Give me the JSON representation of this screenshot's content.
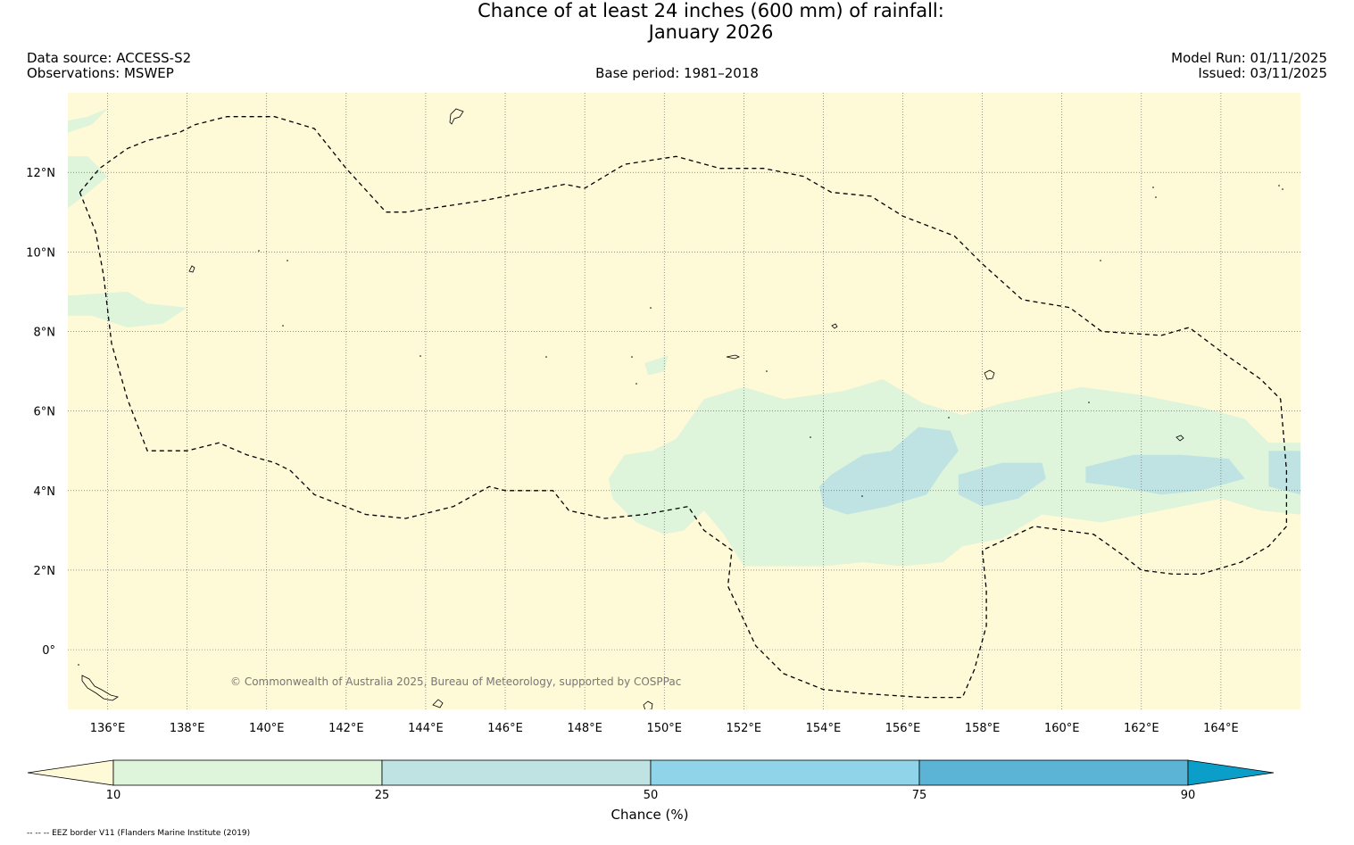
{
  "title": {
    "line1": "Chance of at least 24 inches (600  mm) of rainfall:",
    "line2": "January 2026"
  },
  "meta": {
    "data_source": "Data source: ACCESS-S2",
    "observations": "Observations: MSWEP",
    "base_period": "Base period: 1981–2018",
    "model_run": "Model Run: 01/11/2025",
    "issued": "Issued: 03/11/2025"
  },
  "map": {
    "lon_range": [
      135,
      166
    ],
    "lat_range": [
      -1.5,
      14
    ],
    "lon_ticks": [
      136,
      138,
      140,
      142,
      144,
      146,
      148,
      150,
      152,
      154,
      156,
      158,
      160,
      162,
      164
    ],
    "lon_labels": [
      "136°E",
      "138°E",
      "140°E",
      "142°E",
      "144°E",
      "146°E",
      "148°E",
      "150°E",
      "152°E",
      "154°E",
      "156°E",
      "158°E",
      "160°E",
      "162°E",
      "164°E"
    ],
    "lat_ticks": [
      12,
      10,
      8,
      6,
      4,
      2,
      0
    ],
    "lat_labels": [
      "12°N",
      "10°N",
      "8°N",
      "6°N",
      "4°N",
      "2°N",
      "0°"
    ],
    "background_color": "#fef9d6",
    "copyright": "© Commonwealth of Australia 2025, Bureau of Meteorology, supported by COSPPac",
    "eez_border_lonlat": [
      [
        135.3,
        11.5
      ],
      [
        135.8,
        12.1
      ],
      [
        136.5,
        12.6
      ],
      [
        137.0,
        12.8
      ],
      [
        137.8,
        13.0
      ],
      [
        138.2,
        13.2
      ],
      [
        139.0,
        13.4
      ],
      [
        140.2,
        13.4
      ],
      [
        141.2,
        13.1
      ],
      [
        142.0,
        12.1
      ],
      [
        143.0,
        11.0
      ],
      [
        143.5,
        11.0
      ],
      [
        145.5,
        11.3
      ],
      [
        147.5,
        11.7
      ],
      [
        148.0,
        11.6
      ],
      [
        149.0,
        12.2
      ],
      [
        150.3,
        12.4
      ],
      [
        151.4,
        12.1
      ],
      [
        152.5,
        12.1
      ],
      [
        153.5,
        11.9
      ],
      [
        154.2,
        11.5
      ],
      [
        155.2,
        11.4
      ],
      [
        156.0,
        10.9
      ],
      [
        157.3,
        10.4
      ],
      [
        158.0,
        9.7
      ],
      [
        159.0,
        8.8
      ],
      [
        160.2,
        8.6
      ],
      [
        161.0,
        8.0
      ],
      [
        162.5,
        7.9
      ],
      [
        163.2,
        8.1
      ],
      [
        164.0,
        7.5
      ],
      [
        165.0,
        6.8
      ],
      [
        165.5,
        6.3
      ],
      [
        165.65,
        4.5
      ],
      [
        165.65,
        3.1
      ],
      [
        165.2,
        2.6
      ],
      [
        164.5,
        2.2
      ],
      [
        163.5,
        1.9
      ],
      [
        162.8,
        1.9
      ],
      [
        162.0,
        2.0
      ],
      [
        161.5,
        2.4
      ],
      [
        160.8,
        2.9
      ],
      [
        159.3,
        3.1
      ],
      [
        158.0,
        2.5
      ],
      [
        158.1,
        1.5
      ],
      [
        158.1,
        0.6
      ],
      [
        157.8,
        -0.5
      ],
      [
        157.5,
        -1.2
      ],
      [
        156.5,
        -1.2
      ],
      [
        155.0,
        -1.1
      ],
      [
        154.0,
        -1.0
      ],
      [
        153.0,
        -0.6
      ],
      [
        152.3,
        0.1
      ],
      [
        151.6,
        1.6
      ],
      [
        151.7,
        2.5
      ],
      [
        151.0,
        3.0
      ],
      [
        150.6,
        3.6
      ],
      [
        149.5,
        3.4
      ],
      [
        148.5,
        3.3
      ],
      [
        147.6,
        3.5
      ],
      [
        147.2,
        4.0
      ],
      [
        146.0,
        4.0
      ],
      [
        145.6,
        4.1
      ],
      [
        144.7,
        3.6
      ],
      [
        143.5,
        3.3
      ],
      [
        142.5,
        3.4
      ],
      [
        141.2,
        3.9
      ],
      [
        140.6,
        4.5
      ],
      [
        140.2,
        4.7
      ],
      [
        139.5,
        4.9
      ],
      [
        138.8,
        5.2
      ],
      [
        138.0,
        5.0
      ],
      [
        137.0,
        5.0
      ],
      [
        136.5,
        6.3
      ],
      [
        136.1,
        7.7
      ],
      [
        135.9,
        9.4
      ],
      [
        135.7,
        10.5
      ],
      [
        135.3,
        11.5
      ]
    ],
    "zone_10_25_lonlat": [
      [
        [
          150.3,
          5.3
        ],
        [
          151.0,
          6.3
        ],
        [
          152.0,
          6.6
        ],
        [
          153.0,
          6.3
        ],
        [
          154.5,
          6.5
        ],
        [
          155.5,
          6.8
        ],
        [
          156.5,
          6.2
        ],
        [
          157.5,
          5.9
        ],
        [
          158.5,
          6.2
        ],
        [
          159.5,
          6.4
        ],
        [
          160.5,
          6.6
        ],
        [
          162.0,
          6.4
        ],
        [
          163.5,
          6.1
        ],
        [
          164.6,
          5.8
        ],
        [
          165.2,
          5.2
        ],
        [
          166.0,
          5.2
        ],
        [
          166.0,
          3.4
        ],
        [
          165.0,
          3.5
        ],
        [
          164.0,
          3.8
        ],
        [
          162.5,
          3.5
        ],
        [
          161.0,
          3.2
        ],
        [
          159.5,
          3.4
        ],
        [
          158.5,
          2.8
        ],
        [
          157.5,
          2.6
        ],
        [
          157.0,
          2.2
        ],
        [
          156.0,
          2.1
        ],
        [
          155.0,
          2.2
        ],
        [
          154.0,
          2.1
        ],
        [
          153.0,
          2.1
        ],
        [
          152.0,
          2.1
        ],
        [
          151.5,
          2.9
        ],
        [
          151.0,
          3.5
        ],
        [
          150.5,
          3.0
        ],
        [
          150.0,
          2.9
        ],
        [
          149.3,
          3.2
        ],
        [
          148.7,
          3.8
        ],
        [
          148.6,
          4.3
        ],
        [
          149.0,
          4.9
        ],
        [
          149.7,
          5.0
        ]
      ],
      [
        [
          135.0,
          8.9
        ],
        [
          136.5,
          9.0
        ],
        [
          137.0,
          8.7
        ],
        [
          138.0,
          8.6
        ],
        [
          137.4,
          8.2
        ],
        [
          136.5,
          8.1
        ],
        [
          135.6,
          8.4
        ],
        [
          135.0,
          8.4
        ]
      ],
      [
        [
          135.0,
          12.4
        ],
        [
          135.5,
          12.4
        ],
        [
          136.0,
          11.9
        ],
        [
          135.4,
          11.4
        ],
        [
          135.0,
          11.1
        ]
      ],
      [
        [
          135.0,
          13.3
        ],
        [
          135.5,
          13.4
        ],
        [
          136.0,
          13.6
        ],
        [
          135.6,
          13.2
        ],
        [
          135.0,
          13.0
        ]
      ],
      [
        [
          149.5,
          7.2
        ],
        [
          150.1,
          7.4
        ],
        [
          150.0,
          7.0
        ],
        [
          149.6,
          6.9
        ]
      ]
    ],
    "zone_25_50_lonlat": [
      [
        [
          154.2,
          4.4
        ],
        [
          155.0,
          4.9
        ],
        [
          155.7,
          5.0
        ],
        [
          156.4,
          5.6
        ],
        [
          157.2,
          5.5
        ],
        [
          157.4,
          5.0
        ],
        [
          157.0,
          4.5
        ],
        [
          156.6,
          3.9
        ],
        [
          155.6,
          3.6
        ],
        [
          154.6,
          3.4
        ],
        [
          154.0,
          3.6
        ],
        [
          153.9,
          4.1
        ]
      ],
      [
        [
          157.4,
          4.4
        ],
        [
          158.5,
          4.7
        ],
        [
          159.5,
          4.7
        ],
        [
          159.6,
          4.3
        ],
        [
          158.9,
          3.8
        ],
        [
          158.0,
          3.6
        ],
        [
          157.4,
          3.9
        ]
      ],
      [
        [
          160.6,
          4.6
        ],
        [
          161.8,
          4.9
        ],
        [
          163.0,
          4.9
        ],
        [
          164.2,
          4.8
        ],
        [
          164.6,
          4.3
        ],
        [
          163.5,
          4.0
        ],
        [
          162.5,
          3.9
        ],
        [
          161.4,
          4.1
        ],
        [
          160.6,
          4.2
        ]
      ],
      [
        [
          165.2,
          5.0
        ],
        [
          166.0,
          5.0
        ],
        [
          166.0,
          3.9
        ],
        [
          165.2,
          4.1
        ]
      ]
    ]
  },
  "colorbar": {
    "title": "Chance (%)",
    "tick_values": [
      10,
      25,
      50,
      75,
      90
    ],
    "tick_labels": [
      "10",
      "25",
      "50",
      "75",
      "90"
    ],
    "segments": [
      {
        "from": 10,
        "to": 25,
        "color": "#def4db"
      },
      {
        "from": 25,
        "to": 50,
        "color": "#bfe3e3"
      },
      {
        "from": 50,
        "to": 75,
        "color": "#8fd4e8"
      },
      {
        "from": 75,
        "to": 90,
        "color": "#5bb4d5"
      }
    ],
    "under_color": "#fef9d6",
    "over_color": "#0a9ec8"
  },
  "footer": {
    "legend": "-- -- -- EEZ border V11 (Flanders Marine Institute (2019)"
  }
}
